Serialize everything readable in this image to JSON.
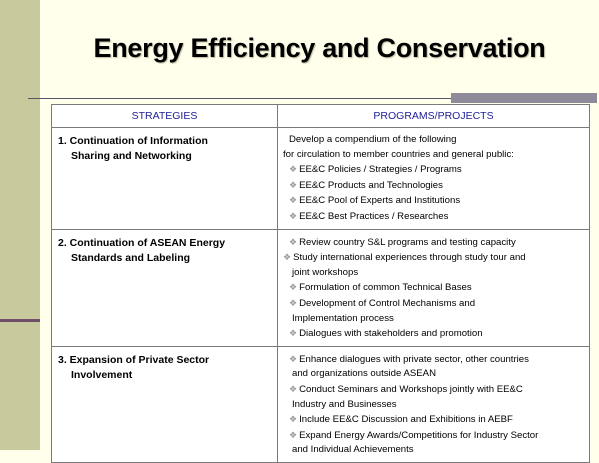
{
  "title": "Energy Efficiency and Conservation",
  "table": {
    "headers": [
      "STRATEGIES",
      "PROGRAMS/PROJECTS"
    ],
    "rows": [
      {
        "strategy": [
          "1.  Continuation of Information",
          "Sharing and Networking"
        ],
        "intro": [
          "Develop a compendium of the following",
          "for circulation to member countries and general public:"
        ],
        "items": [
          [
            "EE&C Policies / Strategies / Programs"
          ],
          [
            "EE&C Products and Technologies"
          ],
          [
            "EE&C Pool of Experts and Institutions"
          ],
          [
            "EE&C Best Practices / Researches"
          ]
        ]
      },
      {
        "strategy": [
          "2.  Continuation of ASEAN Energy",
          "Standards and Labeling"
        ],
        "items": [
          [
            "Review country S&L programs and testing capacity"
          ],
          [
            "Study international experiences through study tour and",
            "joint workshops"
          ],
          [
            "Formulation of common Technical Bases"
          ],
          [
            "Development of Control Mechanisms and",
            "Implementation process"
          ],
          [
            "Dialogues with stakeholders and promotion"
          ]
        ]
      },
      {
        "strategy": [
          "3.   Expansion of Private Sector",
          "Involvement"
        ],
        "items": [
          [
            "Enhance dialogues with private sector, other countries",
            "and organizations outside ASEAN"
          ],
          [
            "Conduct Seminars and Workshops jointly with EE&C",
            "Industry and Businesses"
          ],
          [
            "Include EE&C Discussion and Exhibitions in AEBF"
          ],
          [
            "Expand Energy Awards/Competitions for Industry Sector",
            "and Individual Achievements"
          ]
        ]
      }
    ]
  }
}
